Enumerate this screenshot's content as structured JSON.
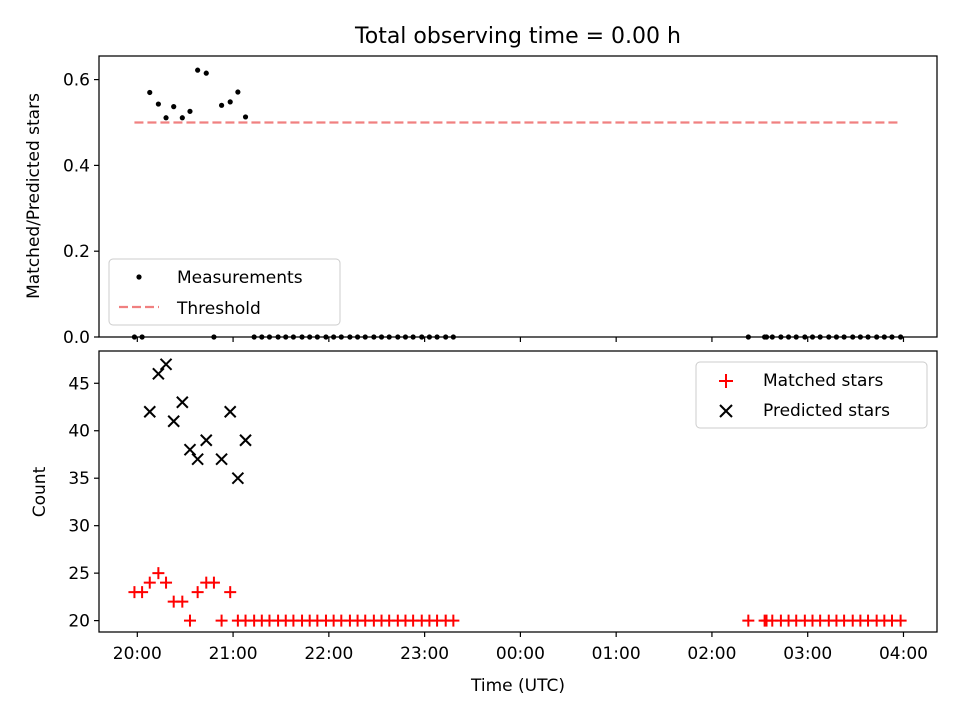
{
  "chart_data": [
    {
      "type": "scatter",
      "title": "Total observing time = 0.00 h",
      "ylabel": "Matched/Predicted stars",
      "xlabel": "",
      "xlim": [
        19.6,
        28.35
      ],
      "ylim": [
        0,
        0.655
      ],
      "yticks": [
        0.0,
        0.2,
        0.4,
        0.6
      ],
      "ytick_labels": [
        "0.0",
        "0.2",
        "0.4",
        "0.6"
      ],
      "xticks": [
        20,
        21,
        22,
        23,
        24,
        25,
        26,
        27,
        28
      ],
      "xtick_labels": [],
      "legend_position": "lower-left",
      "series": [
        {
          "name": "Measurements",
          "kind": "scatter",
          "color": "#000000",
          "x": [
            19.97,
            20.05,
            20.13,
            20.22,
            20.3,
            20.38,
            20.47,
            20.55,
            20.63,
            20.72,
            20.8,
            20.88,
            20.97,
            21.05,
            21.13,
            21.22,
            21.3,
            21.38,
            21.47,
            21.55,
            21.63,
            21.72,
            21.8,
            21.88,
            21.97,
            22.05,
            22.13,
            22.22,
            22.3,
            22.38,
            22.47,
            22.55,
            22.63,
            22.72,
            22.8,
            22.88,
            22.97,
            23.05,
            23.13,
            23.22,
            23.3,
            26.38,
            26.55,
            26.57,
            26.63,
            26.72,
            26.8,
            26.88,
            26.97,
            27.05,
            27.13,
            27.22,
            27.3,
            27.38,
            27.47,
            27.55,
            27.63,
            27.72,
            27.8,
            27.88,
            27.97
          ],
          "y": [
            0.0,
            0.0,
            0.57,
            0.543,
            0.511,
            0.537,
            0.511,
            0.526,
            0.622,
            0.615,
            0.0,
            0.54,
            0.548,
            0.571,
            0.513,
            0.0,
            0.0,
            0.0,
            0.0,
            0.0,
            0.0,
            0.0,
            0.0,
            0.0,
            0.0,
            0.0,
            0.0,
            0.0,
            0.0,
            0.0,
            0.0,
            0.0,
            0.0,
            0.0,
            0.0,
            0.0,
            0.0,
            0.0,
            0.0,
            0.0,
            0.0,
            0.0,
            0.0,
            0.0,
            0.0,
            0.0,
            0.0,
            0.0,
            0.0,
            0.0,
            0.0,
            0.0,
            0.0,
            0.0,
            0.0,
            0.0,
            0.0,
            0.0,
            0.0,
            0.0,
            0.0
          ]
        },
        {
          "name": "Threshold",
          "kind": "dashed-line",
          "color": "#f08080",
          "x": [
            19.97,
            27.97
          ],
          "y": [
            0.5,
            0.5
          ]
        }
      ]
    },
    {
      "type": "scatter",
      "title": "",
      "ylabel": "Count",
      "xlabel": "Time (UTC)",
      "xlim": [
        19.6,
        28.35
      ],
      "ylim": [
        18.8,
        48.4
      ],
      "yticks": [
        20,
        25,
        30,
        35,
        40,
        45
      ],
      "ytick_labels": [
        "20",
        "25",
        "30",
        "35",
        "40",
        "45"
      ],
      "xticks": [
        20,
        21,
        22,
        23,
        24,
        25,
        26,
        27,
        28
      ],
      "xtick_labels": [
        "20:00",
        "21:00",
        "22:00",
        "23:00",
        "00:00",
        "01:00",
        "02:00",
        "03:00",
        "04:00"
      ],
      "legend_position": "top-right",
      "series": [
        {
          "name": "Matched stars",
          "kind": "plus",
          "color": "#ff0000",
          "x": [
            19.97,
            20.05,
            20.13,
            20.22,
            20.3,
            20.38,
            20.47,
            20.55,
            20.63,
            20.72,
            20.8,
            20.88,
            20.97,
            21.05,
            21.13,
            21.22,
            21.3,
            21.38,
            21.47,
            21.55,
            21.63,
            21.72,
            21.8,
            21.88,
            21.97,
            22.05,
            22.13,
            22.22,
            22.3,
            22.38,
            22.47,
            22.55,
            22.63,
            22.72,
            22.8,
            22.88,
            22.97,
            23.05,
            23.13,
            23.22,
            23.3,
            26.38,
            26.55,
            26.57,
            26.63,
            26.72,
            26.8,
            26.88,
            26.97,
            27.05,
            27.13,
            27.22,
            27.3,
            27.38,
            27.47,
            27.55,
            27.63,
            27.72,
            27.8,
            27.88,
            27.97
          ],
          "y": [
            23,
            23,
            24,
            25,
            24,
            22,
            22,
            20,
            23,
            24,
            24,
            20,
            23,
            20,
            20,
            20,
            20,
            20,
            20,
            20,
            20,
            20,
            20,
            20,
            20,
            20,
            20,
            20,
            20,
            20,
            20,
            20,
            20,
            20,
            20,
            20,
            20,
            20,
            20,
            20,
            20,
            20,
            20,
            20,
            20,
            20,
            20,
            20,
            20,
            20,
            20,
            20,
            20,
            20,
            20,
            20,
            20,
            20,
            20,
            20,
            20
          ]
        },
        {
          "name": "Predicted stars",
          "kind": "x",
          "color": "#000000",
          "x": [
            20.13,
            20.22,
            20.3,
            20.38,
            20.47,
            20.55,
            20.63,
            20.72,
            20.88,
            20.97,
            21.05,
            21.13
          ],
          "y": [
            42,
            46,
            47,
            41,
            43,
            38,
            37,
            39,
            37,
            42,
            35,
            39
          ]
        }
      ]
    }
  ]
}
